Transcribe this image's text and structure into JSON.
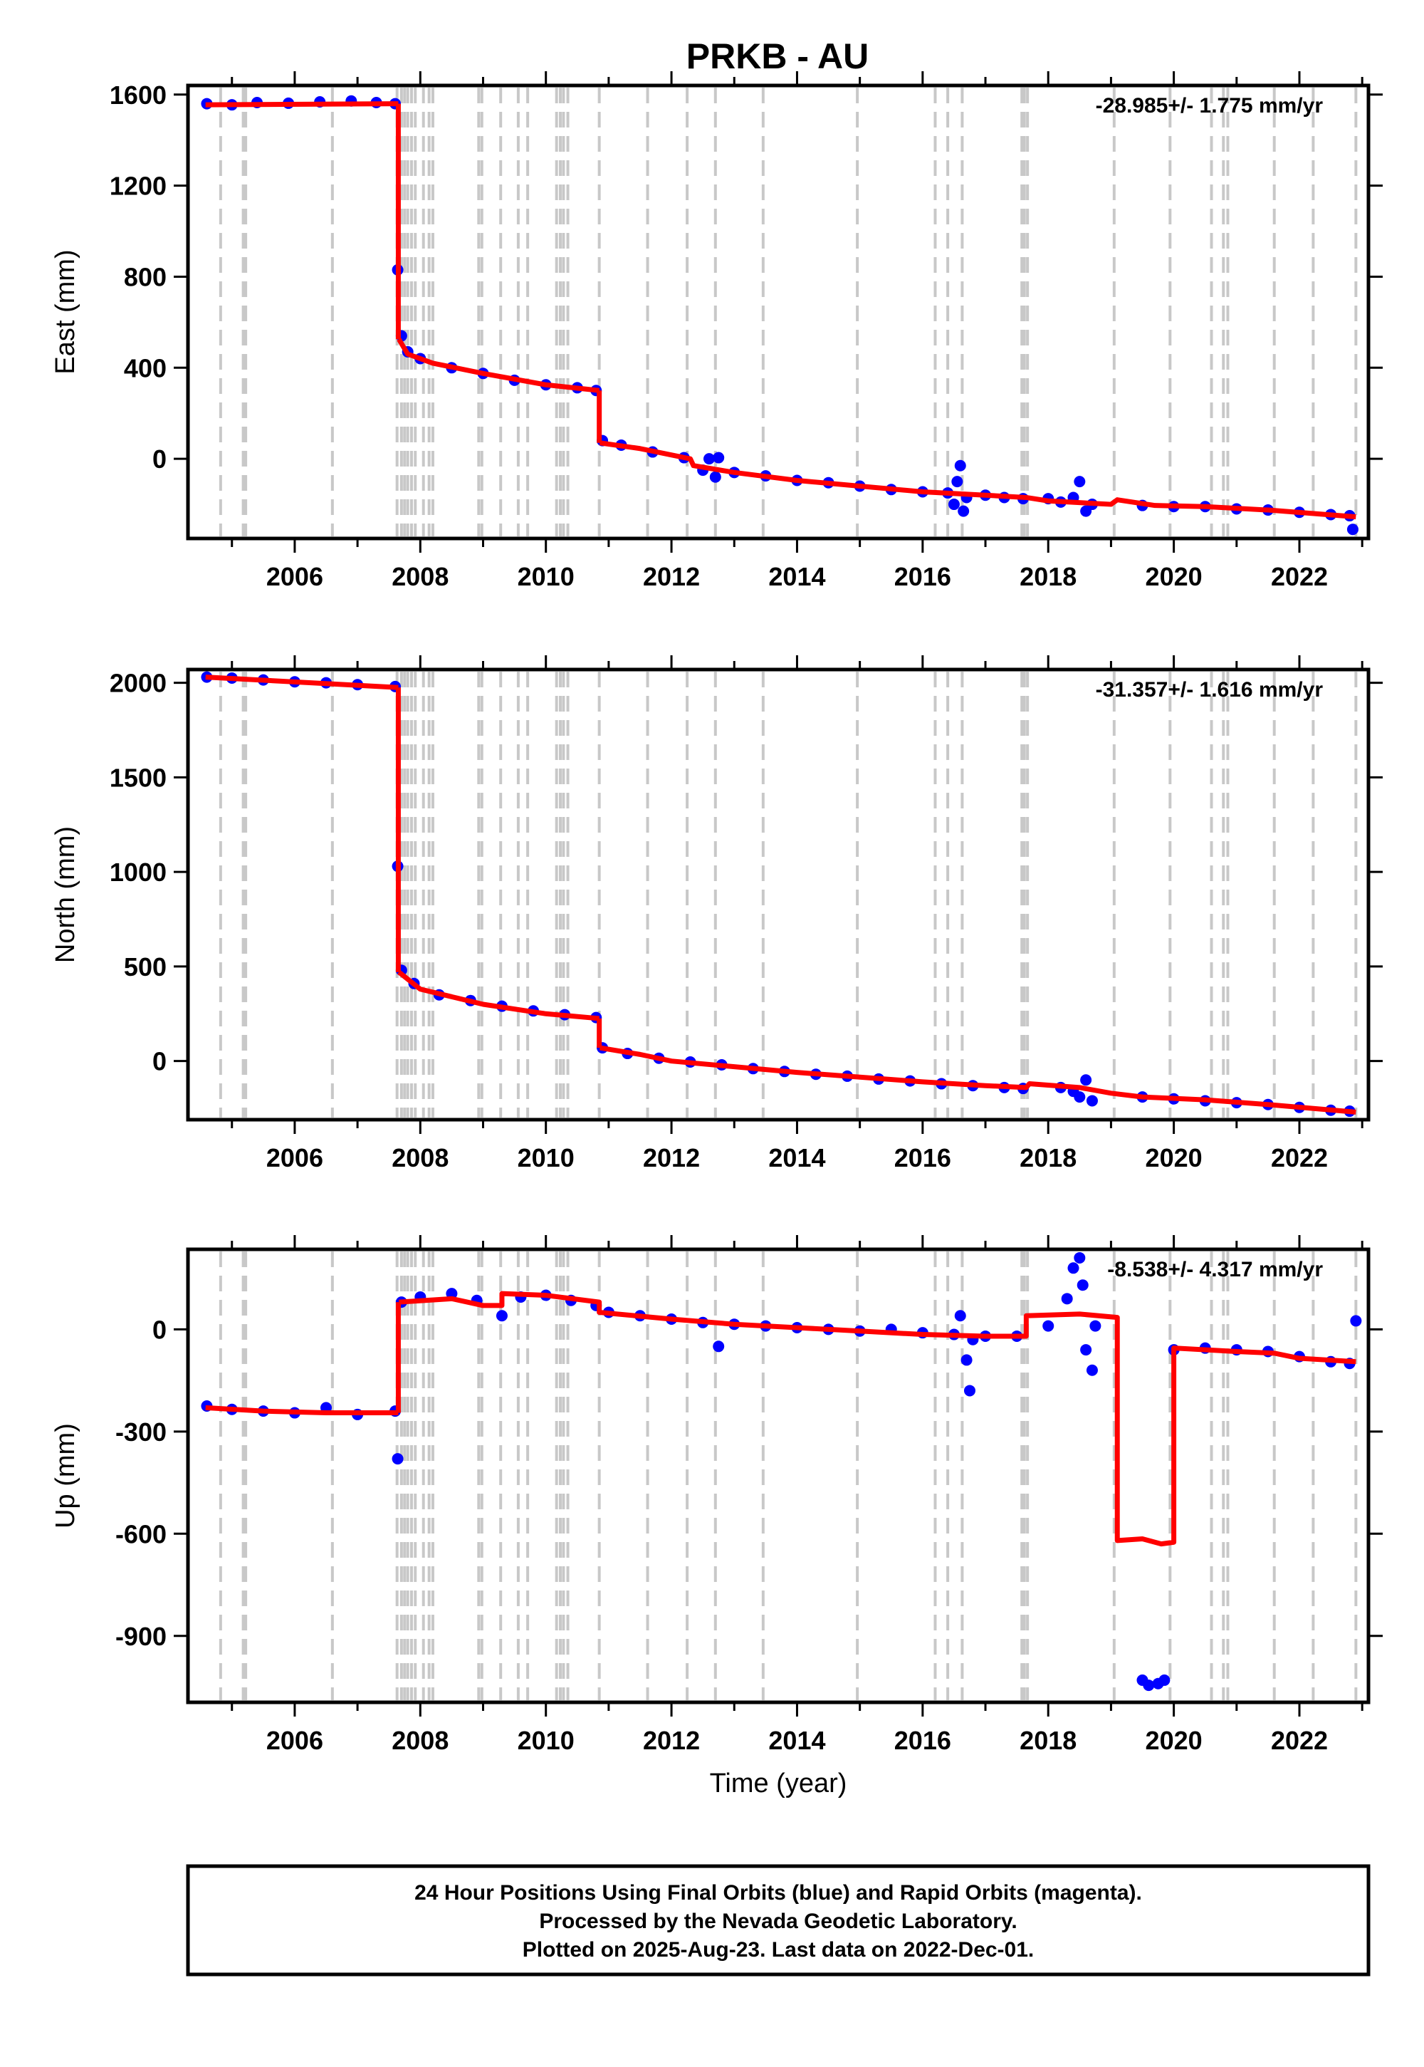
{
  "title": "PRKB - AU",
  "colors": {
    "final_orbits": "#0000ff",
    "model": "#ff0000",
    "steps": "#c8c8c8",
    "frame": "#000000"
  },
  "footer": {
    "line1": "24 Hour Positions Using Final Orbits (blue) and Rapid Orbits (magenta).",
    "line2": "Processed by the Nevada Geodetic Laboratory.",
    "line3": "Plotted on 2025-Aug-23. Last data on 2022-Dec-01."
  },
  "chart_data": [
    {
      "type": "scatter",
      "ylabel": "East (mm)",
      "xlabel": "",
      "rate": "-28.985+/- 1.775 mm/yr",
      "xlim": [
        2004.3,
        2023.1
      ],
      "ylim": [
        -350,
        1640
      ],
      "xticks": [
        "2006",
        "2008",
        "2010",
        "2012",
        "2014",
        "2016",
        "2018",
        "2020",
        "2022"
      ],
      "yticks": [
        "1600",
        "1200",
        "800",
        "400",
        "0"
      ],
      "ytick_values": [
        1600,
        1200,
        800,
        400,
        0
      ],
      "model_segments": [
        [
          [
            2004.58,
            1555
          ],
          [
            2007.65,
            1560
          ]
        ],
        [
          [
            2007.65,
            1560
          ],
          [
            2007.65,
            525
          ]
        ],
        [
          [
            2007.66,
            525
          ],
          [
            2007.8,
            460
          ],
          [
            2008.2,
            420
          ],
          [
            2009.0,
            375
          ],
          [
            2010.0,
            325
          ],
          [
            2010.85,
            300
          ]
        ],
        [
          [
            2010.85,
            300
          ],
          [
            2010.85,
            70
          ]
        ],
        [
          [
            2010.86,
            70
          ],
          [
            2011.5,
            45
          ],
          [
            2012.3,
            0
          ],
          [
            2012.35,
            -30
          ],
          [
            2013.0,
            -60
          ],
          [
            2014.0,
            -95
          ],
          [
            2015.0,
            -120
          ],
          [
            2016.0,
            -145
          ],
          [
            2017.0,
            -160
          ],
          [
            2017.65,
            -170
          ],
          [
            2018.0,
            -185
          ],
          [
            2019.0,
            -200
          ],
          [
            2019.1,
            -180
          ],
          [
            2019.7,
            -205
          ],
          [
            2020.5,
            -210
          ],
          [
            2021.5,
            -225
          ],
          [
            2022.9,
            -255
          ]
        ]
      ],
      "points": [
        [
          2004.6,
          1560
        ],
        [
          2005.0,
          1555
        ],
        [
          2005.4,
          1565
        ],
        [
          2005.9,
          1562
        ],
        [
          2006.4,
          1568
        ],
        [
          2006.9,
          1572
        ],
        [
          2007.3,
          1565
        ],
        [
          2007.6,
          1560
        ],
        [
          2007.64,
          830
        ],
        [
          2007.7,
          540
        ],
        [
          2007.8,
          470
        ],
        [
          2008.0,
          440
        ],
        [
          2008.5,
          400
        ],
        [
          2009.0,
          375
        ],
        [
          2009.5,
          345
        ],
        [
          2010.0,
          325
        ],
        [
          2010.5,
          312
        ],
        [
          2010.8,
          300
        ],
        [
          2010.9,
          80
        ],
        [
          2011.2,
          60
        ],
        [
          2011.7,
          30
        ],
        [
          2012.2,
          5
        ],
        [
          2012.5,
          -50
        ],
        [
          2012.6,
          0
        ],
        [
          2012.75,
          5
        ],
        [
          2012.7,
          -80
        ],
        [
          2013.0,
          -60
        ],
        [
          2013.5,
          -75
        ],
        [
          2014.0,
          -95
        ],
        [
          2014.5,
          -105
        ],
        [
          2015.0,
          -120
        ],
        [
          2015.5,
          -135
        ],
        [
          2016.0,
          -145
        ],
        [
          2016.4,
          -150
        ],
        [
          2016.5,
          -200
        ],
        [
          2016.55,
          -100
        ],
        [
          2016.6,
          -30
        ],
        [
          2016.65,
          -230
        ],
        [
          2016.7,
          -170
        ],
        [
          2017.0,
          -160
        ],
        [
          2017.3,
          -170
        ],
        [
          2017.6,
          -175
        ],
        [
          2018.0,
          -175
        ],
        [
          2018.2,
          -190
        ],
        [
          2018.4,
          -170
        ],
        [
          2018.5,
          -100
        ],
        [
          2018.6,
          -230
        ],
        [
          2018.7,
          -200
        ],
        [
          2019.5,
          -205
        ],
        [
          2020.0,
          -210
        ],
        [
          2020.5,
          -210
        ],
        [
          2021.0,
          -220
        ],
        [
          2021.5,
          -225
        ],
        [
          2022.0,
          -235
        ],
        [
          2022.5,
          -245
        ],
        [
          2022.8,
          -250
        ],
        [
          2022.85,
          -310
        ]
      ]
    },
    {
      "type": "scatter",
      "ylabel": "North (mm)",
      "xlabel": "",
      "rate": "-31.357+/- 1.616 mm/yr",
      "xlim": [
        2004.3,
        2023.1
      ],
      "ylim": [
        -310,
        2070
      ],
      "xticks": [
        "2006",
        "2008",
        "2010",
        "2012",
        "2014",
        "2016",
        "2018",
        "2020",
        "2022"
      ],
      "yticks": [
        "2000",
        "1500",
        "1000",
        "500",
        "0"
      ],
      "ytick_values": [
        2000,
        1500,
        1000,
        500,
        0
      ],
      "model_segments": [
        [
          [
            2004.58,
            2030
          ],
          [
            2007.65,
            1975
          ]
        ],
        [
          [
            2007.65,
            1975
          ],
          [
            2007.65,
            470
          ]
        ],
        [
          [
            2007.66,
            470
          ],
          [
            2008.0,
            380
          ],
          [
            2009.0,
            300
          ],
          [
            2010.0,
            250
          ],
          [
            2010.85,
            225
          ]
        ],
        [
          [
            2010.85,
            225
          ],
          [
            2010.85,
            70
          ]
        ],
        [
          [
            2010.86,
            70
          ],
          [
            2011.5,
            35
          ],
          [
            2012.0,
            0
          ],
          [
            2013.0,
            -30
          ],
          [
            2014.0,
            -60
          ],
          [
            2015.0,
            -85
          ],
          [
            2016.0,
            -110
          ],
          [
            2017.0,
            -130
          ],
          [
            2017.65,
            -140
          ],
          [
            2017.7,
            -120
          ],
          [
            2018.5,
            -140
          ],
          [
            2019.0,
            -170
          ],
          [
            2019.5,
            -190
          ],
          [
            2020.5,
            -205
          ],
          [
            2021.5,
            -230
          ],
          [
            2022.9,
            -270
          ]
        ]
      ],
      "points": [
        [
          2004.6,
          2030
        ],
        [
          2005.0,
          2025
        ],
        [
          2005.5,
          2015
        ],
        [
          2006.0,
          2005
        ],
        [
          2006.5,
          2000
        ],
        [
          2007.0,
          1990
        ],
        [
          2007.6,
          1980
        ],
        [
          2007.64,
          1030
        ],
        [
          2007.7,
          480
        ],
        [
          2007.9,
          410
        ],
        [
          2008.3,
          350
        ],
        [
          2008.8,
          320
        ],
        [
          2009.3,
          290
        ],
        [
          2009.8,
          265
        ],
        [
          2010.3,
          245
        ],
        [
          2010.8,
          230
        ],
        [
          2010.9,
          70
        ],
        [
          2011.3,
          40
        ],
        [
          2011.8,
          15
        ],
        [
          2012.3,
          -5
        ],
        [
          2012.8,
          -20
        ],
        [
          2013.3,
          -40
        ],
        [
          2013.8,
          -55
        ],
        [
          2014.3,
          -70
        ],
        [
          2014.8,
          -80
        ],
        [
          2015.3,
          -95
        ],
        [
          2015.8,
          -105
        ],
        [
          2016.3,
          -120
        ],
        [
          2016.8,
          -130
        ],
        [
          2017.3,
          -140
        ],
        [
          2017.6,
          -145
        ],
        [
          2018.2,
          -140
        ],
        [
          2018.4,
          -160
        ],
        [
          2018.5,
          -190
        ],
        [
          2018.6,
          -100
        ],
        [
          2018.7,
          -210
        ],
        [
          2019.5,
          -190
        ],
        [
          2020.0,
          -200
        ],
        [
          2020.5,
          -210
        ],
        [
          2021.0,
          -220
        ],
        [
          2021.5,
          -230
        ],
        [
          2022.0,
          -245
        ],
        [
          2022.5,
          -260
        ],
        [
          2022.8,
          -265
        ]
      ]
    },
    {
      "type": "scatter",
      "ylabel": "Up (mm)",
      "xlabel": "Time (year)",
      "rate": "-8.538+/- 4.317 mm/yr",
      "xlim": [
        2004.3,
        2023.1
      ],
      "ylim": [
        -1095,
        235
      ],
      "xticks": [
        "2006",
        "2008",
        "2010",
        "2012",
        "2014",
        "2016",
        "2018",
        "2020",
        "2022"
      ],
      "yticks": [
        "0",
        "-300",
        "-600",
        "-900"
      ],
      "ytick_values": [
        0,
        -300,
        -600,
        -900
      ],
      "model_segments": [
        [
          [
            2004.58,
            -230
          ],
          [
            2005.5,
            -240
          ],
          [
            2006.5,
            -245
          ],
          [
            2007.65,
            -245
          ]
        ],
        [
          [
            2007.65,
            -245
          ],
          [
            2007.65,
            80
          ]
        ],
        [
          [
            2007.66,
            80
          ],
          [
            2008.5,
            90
          ],
          [
            2009.0,
            70
          ],
          [
            2009.3,
            70
          ],
          [
            2009.3,
            105
          ],
          [
            2010.0,
            100
          ],
          [
            2010.85,
            80
          ],
          [
            2010.85,
            50
          ],
          [
            2012.0,
            30
          ],
          [
            2013.0,
            15
          ],
          [
            2014.0,
            5
          ],
          [
            2015.0,
            -5
          ],
          [
            2016.0,
            -15
          ],
          [
            2017.0,
            -20
          ],
          [
            2017.65,
            -20
          ],
          [
            2017.65,
            40
          ],
          [
            2018.5,
            45
          ],
          [
            2019.1,
            35
          ],
          [
            2019.1,
            -620
          ],
          [
            2019.5,
            -615
          ],
          [
            2019.8,
            -630
          ],
          [
            2020.0,
            -625
          ],
          [
            2020.0,
            -55
          ],
          [
            2021.0,
            -65
          ],
          [
            2021.6,
            -70
          ],
          [
            2022.0,
            -85
          ],
          [
            2022.9,
            -95
          ]
        ]
      ],
      "points": [
        [
          2004.6,
          -225
        ],
        [
          2005.0,
          -235
        ],
        [
          2005.5,
          -240
        ],
        [
          2006.0,
          -245
        ],
        [
          2006.5,
          -230
        ],
        [
          2007.0,
          -250
        ],
        [
          2007.6,
          -240
        ],
        [
          2007.64,
          -380
        ],
        [
          2007.7,
          80
        ],
        [
          2008.0,
          95
        ],
        [
          2008.5,
          105
        ],
        [
          2008.9,
          85
        ],
        [
          2009.3,
          40
        ],
        [
          2009.6,
          95
        ],
        [
          2010.0,
          100
        ],
        [
          2010.4,
          85
        ],
        [
          2010.8,
          70
        ],
        [
          2011.0,
          50
        ],
        [
          2011.5,
          40
        ],
        [
          2012.0,
          30
        ],
        [
          2012.5,
          20
        ],
        [
          2012.75,
          -50
        ],
        [
          2013.0,
          15
        ],
        [
          2013.5,
          10
        ],
        [
          2014.0,
          5
        ],
        [
          2014.5,
          0
        ],
        [
          2015.0,
          -5
        ],
        [
          2015.5,
          0
        ],
        [
          2016.0,
          -10
        ],
        [
          2016.5,
          -15
        ],
        [
          2016.6,
          40
        ],
        [
          2016.7,
          -90
        ],
        [
          2016.75,
          -180
        ],
        [
          2016.8,
          -30
        ],
        [
          2017.0,
          -20
        ],
        [
          2017.5,
          -20
        ],
        [
          2018.0,
          10
        ],
        [
          2018.3,
          90
        ],
        [
          2018.4,
          180
        ],
        [
          2018.5,
          210
        ],
        [
          2018.55,
          130
        ],
        [
          2018.6,
          -60
        ],
        [
          2018.7,
          -120
        ],
        [
          2018.75,
          10
        ],
        [
          2019.5,
          -1030
        ],
        [
          2019.6,
          -1045
        ],
        [
          2019.75,
          -1040
        ],
        [
          2019.85,
          -1030
        ],
        [
          2020.0,
          -60
        ],
        [
          2020.5,
          -55
        ],
        [
          2021.0,
          -60
        ],
        [
          2021.5,
          -65
        ],
        [
          2022.0,
          -80
        ],
        [
          2022.5,
          -95
        ],
        [
          2022.8,
          -100
        ],
        [
          2022.9,
          25
        ]
      ]
    }
  ],
  "step_years": [
    2004.82,
    2005.18,
    2005.22,
    2006.6,
    2007.63,
    2007.7,
    2007.75,
    2007.8,
    2007.86,
    2007.92,
    2008.05,
    2008.14,
    2008.2,
    2008.93,
    2008.98,
    2009.28,
    2009.56,
    2009.71,
    2010.17,
    2010.23,
    2010.28,
    2010.35,
    2010.85,
    2011.62,
    2012.25,
    2012.7,
    2013.46,
    2014.96,
    2016.2,
    2016.4,
    2016.63,
    2017.58,
    2017.62,
    2017.67,
    2019.05,
    2019.94,
    2020.6,
    2020.79,
    2020.86,
    2021.6,
    2022.22,
    2022.9
  ]
}
